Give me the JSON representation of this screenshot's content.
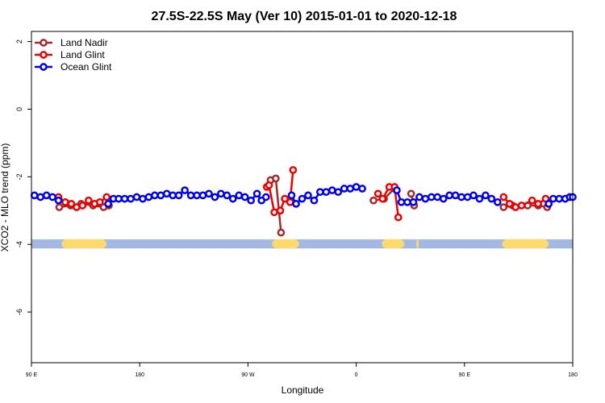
{
  "chart_data": {
    "type": "line",
    "title": "27.5S-22.5S May (Ver 10)   2015-01-01 to 2020-12-18",
    "xlabel": "Longitude",
    "ylabel": "XCO2 - MLO trend (ppm)",
    "xlim": [
      90,
      450
    ],
    "ylim": [
      -7.5,
      2.3
    ],
    "y_ticks": [
      2,
      0,
      -2,
      -4,
      -6
    ],
    "y_tick_labels": [
      "2",
      "0",
      "-2",
      "-4",
      "-6"
    ],
    "x_ticks": [
      90,
      162,
      234,
      306,
      378,
      450
    ],
    "x_tick_labels": [
      "90 E",
      "180",
      "90 W",
      "0",
      "90 E",
      "180"
    ],
    "legend_position": "top-left",
    "series": [
      {
        "name": "Land Nadir",
        "color": "#a52a2a",
        "points": [
          [
            108.5,
            -2.9
          ],
          [
            116,
            -2.85
          ],
          [
            123,
            -2.8
          ],
          [
            131,
            -2.85
          ],
          [
            138,
            -2.9
          ],
          [
            141.5,
            -2.85
          ],
          [
            249,
            -2.1
          ],
          [
            252.5,
            -2.05
          ],
          [
            256,
            -3.65
          ],
          [
            317.5,
            -2.7
          ],
          [
            324.5,
            -2.65
          ],
          [
            331.5,
            -2.35
          ],
          [
            342.5,
            -2.5
          ],
          [
            344.5,
            -2.85
          ],
          [
            404,
            -2.9
          ],
          [
            410,
            -2.85
          ],
          [
            420,
            -2.85
          ],
          [
            427,
            -2.85
          ],
          [
            433,
            -2.9
          ]
        ]
      },
      {
        "name": "Land Glint",
        "color": "#ee0000",
        "points": [
          [
            108,
            -2.6
          ],
          [
            112.5,
            -2.75
          ],
          [
            116.5,
            -2.8
          ],
          [
            120,
            -2.9
          ],
          [
            124,
            -2.85
          ],
          [
            128,
            -2.7
          ],
          [
            132,
            -2.8
          ],
          [
            135.5,
            -2.75
          ],
          [
            140,
            -2.6
          ],
          [
            246.5,
            -2.3
          ],
          [
            248,
            -2.25
          ],
          [
            251.5,
            -3.05
          ],
          [
            255.5,
            -3.0
          ],
          [
            258.5,
            -2.65
          ],
          [
            262,
            -2.75
          ],
          [
            264,
            -1.8
          ],
          [
            320.5,
            -2.5
          ],
          [
            323.5,
            -2.65
          ],
          [
            328,
            -2.3
          ],
          [
            331.5,
            -2.3
          ],
          [
            334,
            -3.2
          ],
          [
            404,
            -2.6
          ],
          [
            408,
            -2.8
          ],
          [
            412,
            -2.9
          ],
          [
            416,
            -2.85
          ],
          [
            423,
            -2.7
          ],
          [
            427,
            -2.8
          ],
          [
            432,
            -2.65
          ]
        ]
      },
      {
        "name": "Ocean Glint",
        "color": "#0000ee",
        "points": [
          [
            92,
            -2.55
          ],
          [
            96,
            -2.6
          ],
          [
            100,
            -2.55
          ],
          [
            104,
            -2.6
          ],
          [
            108,
            -2.7
          ],
          [
            141,
            -2.8
          ],
          [
            144.5,
            -2.65
          ],
          [
            148,
            -2.65
          ],
          [
            152,
            -2.65
          ],
          [
            156,
            -2.65
          ],
          [
            160,
            -2.6
          ],
          [
            164,
            -2.65
          ],
          [
            168,
            -2.6
          ],
          [
            172,
            -2.55
          ],
          [
            176,
            -2.55
          ],
          [
            180,
            -2.5
          ],
          [
            184,
            -2.55
          ],
          [
            188,
            -2.55
          ],
          [
            192,
            -2.4
          ],
          [
            196,
            -2.55
          ],
          [
            200,
            -2.55
          ],
          [
            204,
            -2.55
          ],
          [
            208,
            -2.5
          ],
          [
            212,
            -2.6
          ],
          [
            216,
            -2.5
          ],
          [
            220,
            -2.55
          ],
          [
            224,
            -2.65
          ],
          [
            228,
            -2.55
          ],
          [
            232,
            -2.6
          ],
          [
            236,
            -2.7
          ],
          [
            240,
            -2.5
          ],
          [
            243,
            -2.7
          ],
          [
            246,
            -2.6
          ],
          [
            263,
            -2.55
          ],
          [
            266,
            -2.8
          ],
          [
            270,
            -2.65
          ],
          [
            274,
            -2.55
          ],
          [
            278,
            -2.7
          ],
          [
            282,
            -2.45
          ],
          [
            286,
            -2.45
          ],
          [
            290,
            -2.4
          ],
          [
            294,
            -2.45
          ],
          [
            298,
            -2.35
          ],
          [
            302,
            -2.35
          ],
          [
            306,
            -2.3
          ],
          [
            310,
            -2.35
          ],
          [
            333,
            -2.4
          ],
          [
            336,
            -2.75
          ],
          [
            340,
            -2.75
          ],
          [
            344,
            -2.75
          ],
          [
            348,
            -2.6
          ],
          [
            352,
            -2.65
          ],
          [
            356,
            -2.6
          ],
          [
            360,
            -2.6
          ],
          [
            364,
            -2.65
          ],
          [
            368,
            -2.55
          ],
          [
            372,
            -2.55
          ],
          [
            376,
            -2.6
          ],
          [
            380,
            -2.6
          ],
          [
            384,
            -2.55
          ],
          [
            388,
            -2.65
          ],
          [
            392,
            -2.55
          ],
          [
            396,
            -2.65
          ],
          [
            400,
            -2.75
          ],
          [
            434,
            -2.8
          ],
          [
            437,
            -2.65
          ],
          [
            441,
            -2.65
          ],
          [
            445,
            -2.65
          ],
          [
            448,
            -2.6
          ],
          [
            450,
            -2.6
          ]
        ]
      }
    ],
    "land_mask_color": "#ffd96b",
    "ocean_mask_color": "#a3b8e2",
    "land_segments": [
      [
        110,
        140
      ],
      [
        250,
        268
      ],
      [
        323,
        338
      ],
      [
        346,
        347
      ],
      [
        403,
        434
      ]
    ]
  }
}
